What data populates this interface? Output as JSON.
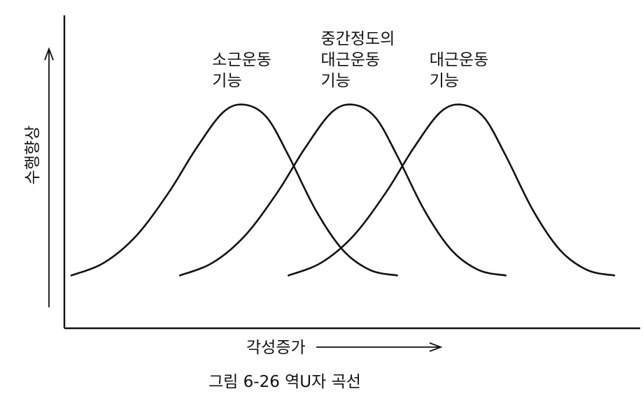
{
  "chart_data": {
    "type": "line",
    "title": "",
    "caption": "그림 6-26 역U자 곡선",
    "xlabel": "각성증가",
    "ylabel": "수행향상",
    "xlim": [
      0,
      10
    ],
    "ylim": [
      0,
      1
    ],
    "series": [
      {
        "name": "소근운동 기능",
        "label_lines": [
          "소근운동",
          "기능"
        ],
        "x": [
          0.0,
          0.6,
          1.2,
          1.8,
          2.3,
          2.8,
          3.2,
          3.6,
          4.0,
          4.5,
          5.0,
          5.5,
          6.0
        ],
        "values": [
          0.06,
          0.13,
          0.28,
          0.52,
          0.76,
          0.96,
          1.0,
          0.93,
          0.72,
          0.42,
          0.2,
          0.09,
          0.06
        ]
      },
      {
        "name": "중간정도의 대근운동 기능",
        "label_lines": [
          "중간정도의",
          "대근운동",
          "기능"
        ],
        "x": [
          2.0,
          2.6,
          3.2,
          3.8,
          4.3,
          4.8,
          5.2,
          5.6,
          6.0,
          6.5,
          7.0,
          7.5,
          8.0
        ],
        "values": [
          0.06,
          0.13,
          0.28,
          0.52,
          0.76,
          0.96,
          1.0,
          0.93,
          0.72,
          0.42,
          0.2,
          0.09,
          0.06
        ]
      },
      {
        "name": "대근운동 기능",
        "label_lines": [
          "대근운동",
          "기능"
        ],
        "x": [
          4.0,
          4.6,
          5.2,
          5.8,
          6.3,
          6.8,
          7.2,
          7.6,
          8.0,
          8.5,
          9.0,
          9.5,
          10.0
        ],
        "values": [
          0.06,
          0.13,
          0.28,
          0.52,
          0.76,
          0.96,
          1.0,
          0.93,
          0.72,
          0.42,
          0.2,
          0.09,
          0.06
        ]
      }
    ],
    "grid": false,
    "legend": "none"
  }
}
